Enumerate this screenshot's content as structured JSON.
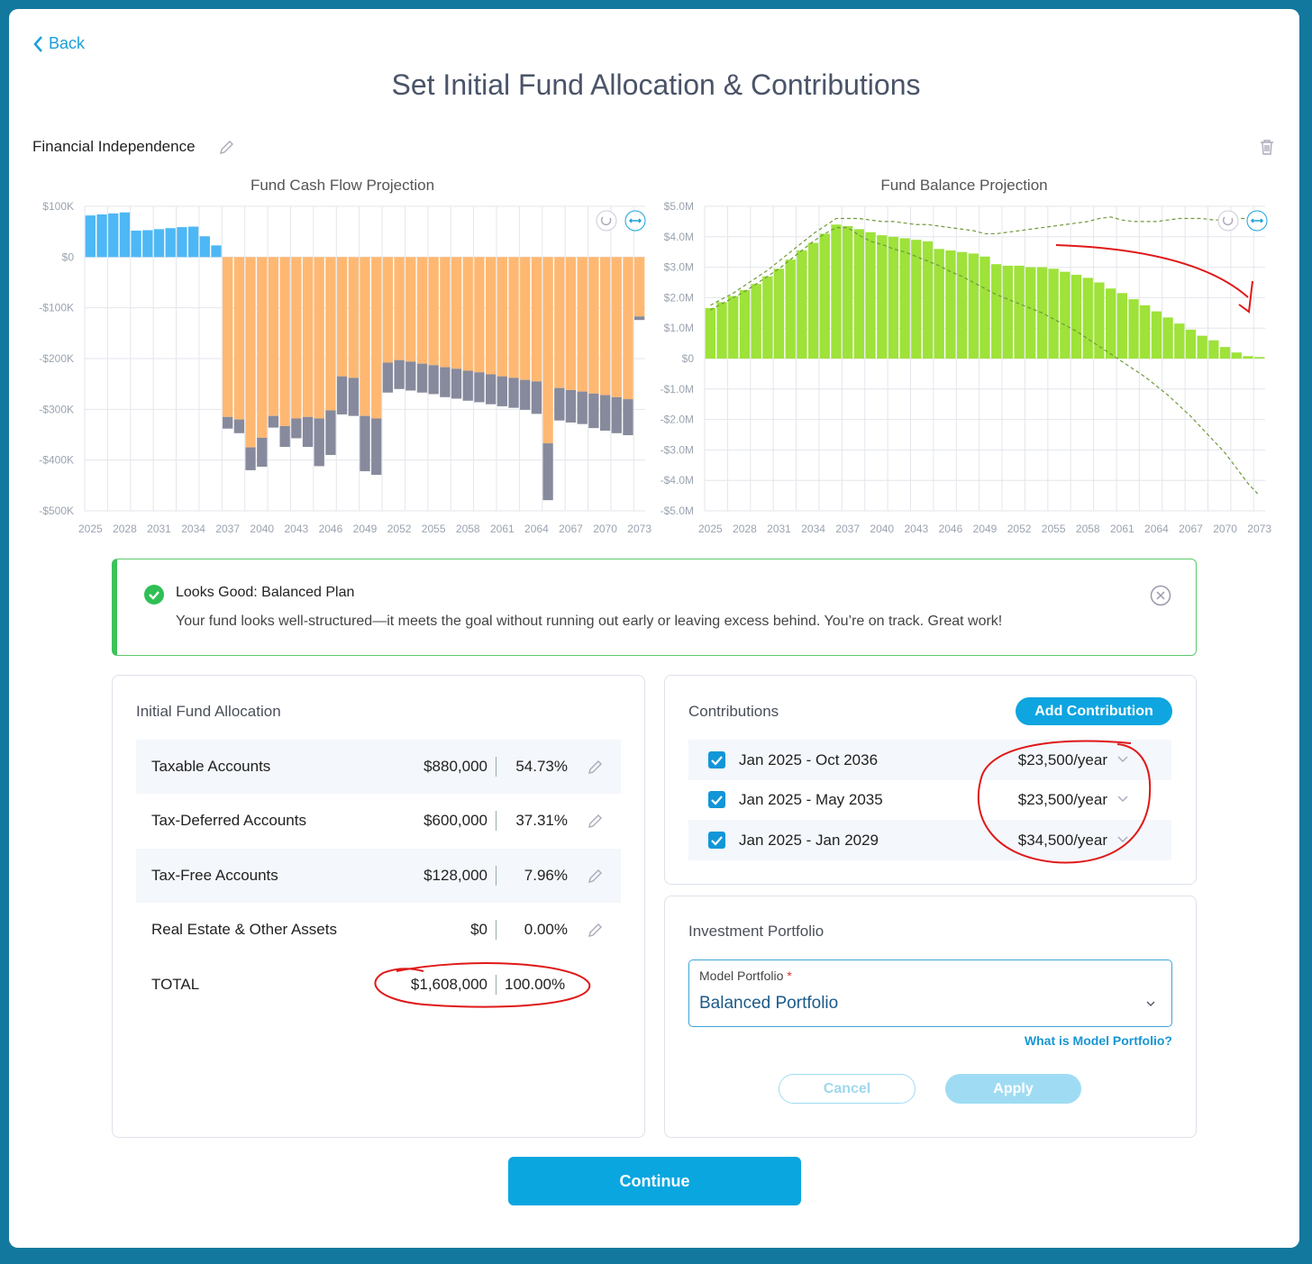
{
  "back": "Back",
  "title": "Set Initial Fund Allocation & Contributions",
  "goal": "Financial Independence",
  "chart_data": [
    {
      "type": "bar",
      "title": "Fund Cash Flow Projection",
      "categories": [
        "2025",
        null,
        null,
        "2028",
        null,
        null,
        "2031",
        null,
        null,
        "2034",
        null,
        null,
        "2037",
        null,
        null,
        "2040",
        null,
        null,
        "2043",
        null,
        null,
        "2046",
        null,
        null,
        "2049",
        null,
        null,
        "2052",
        null,
        null,
        "2055",
        null,
        null,
        "2058",
        null,
        null,
        "2061",
        null,
        null,
        "2064",
        null,
        null,
        "2067",
        null,
        null,
        "2070",
        null,
        null,
        "2073"
      ],
      "series": [
        {
          "color": "#4db8f5",
          "values": [
            82,
            84,
            86,
            88,
            52,
            53,
            55,
            57,
            59,
            60,
            41,
            23,
            0,
            0,
            0,
            0,
            0,
            0,
            0,
            0,
            0,
            0,
            0,
            0,
            0,
            0,
            0,
            0,
            0,
            0,
            0,
            0,
            0,
            0,
            0,
            0,
            0,
            0,
            0,
            0,
            0,
            0,
            0,
            0,
            0,
            0,
            0,
            0,
            0
          ]
        },
        {
          "color": "#ffb872",
          "values": [
            0,
            0,
            0,
            0,
            0,
            0,
            0,
            0,
            0,
            0,
            0,
            0,
            -315,
            -320,
            -375,
            -356,
            -313,
            -333,
            -318,
            -315,
            -318,
            -302,
            -235,
            -238,
            -313,
            -318,
            -208,
            -203,
            -206,
            -210,
            -213,
            -217,
            -220,
            -224,
            -227,
            -231,
            -235,
            -238,
            -242,
            -245,
            -367,
            -258,
            -262,
            -265,
            -269,
            -272,
            -276,
            -280,
            -117
          ]
        },
        {
          "color": "#868a9c",
          "values": [
            0,
            0,
            0,
            0,
            0,
            0,
            0,
            0,
            0,
            0,
            0,
            0,
            -23,
            -27,
            -45,
            -57,
            -23,
            -41,
            -39,
            -59,
            -94,
            -88,
            -75,
            -75,
            -109,
            -111,
            -59,
            -57,
            -57,
            -57,
            -57,
            -59,
            -59,
            -59,
            -59,
            -59,
            -59,
            -59,
            -59,
            -64,
            -112,
            -64,
            -64,
            -64,
            -68,
            -70,
            -71,
            -71,
            -7
          ]
        }
      ],
      "ylim": [
        -500,
        100
      ],
      "yticks": [
        {
          "value": 100,
          "label": "$100K"
        },
        {
          "value": 0,
          "label": "$0"
        },
        {
          "value": -100,
          "label": "-$100K"
        },
        {
          "value": -200,
          "label": "-$200K"
        },
        {
          "value": -300,
          "label": "-$300K"
        },
        {
          "value": -400,
          "label": "-$400K"
        },
        {
          "value": -500,
          "label": "-$500K"
        }
      ],
      "grid": true
    },
    {
      "type": "bar",
      "title": "Fund Balance Projection",
      "categories": [
        "2025",
        null,
        null,
        "2028",
        null,
        null,
        "2031",
        null,
        null,
        "2034",
        null,
        null,
        "2037",
        null,
        null,
        "2040",
        null,
        null,
        "2043",
        null,
        null,
        "2046",
        null,
        null,
        "2049",
        null,
        null,
        "2052",
        null,
        null,
        "2055",
        null,
        null,
        "2058",
        null,
        null,
        "2061",
        null,
        null,
        "2064",
        null,
        null,
        "2067",
        null,
        null,
        "2070",
        null,
        null,
        "2073"
      ],
      "series": [
        {
          "color": "#9ee23a",
          "values": [
            1.66,
            1.85,
            2.05,
            2.25,
            2.45,
            2.7,
            2.95,
            3.25,
            3.55,
            3.8,
            4.1,
            4.4,
            4.35,
            4.25,
            4.15,
            4.05,
            4.0,
            3.95,
            3.9,
            3.85,
            3.6,
            3.55,
            3.5,
            3.45,
            3.35,
            3.1,
            3.05,
            3.05,
            3.0,
            3.0,
            2.95,
            2.85,
            2.75,
            2.65,
            2.5,
            2.3,
            2.15,
            1.95,
            1.75,
            1.55,
            1.35,
            1.15,
            0.95,
            0.75,
            0.6,
            0.38,
            0.2,
            0.08,
            0.05
          ]
        },
        {
          "type": "line",
          "dashed": true,
          "color": "#6f9a3c",
          "values": [
            1.75,
            1.95,
            2.15,
            2.4,
            2.65,
            2.9,
            3.2,
            3.5,
            3.8,
            4.1,
            4.35,
            4.6,
            4.6,
            4.6,
            4.55,
            4.5,
            4.5,
            4.45,
            4.4,
            4.4,
            4.35,
            4.3,
            4.25,
            4.2,
            4.1,
            4.1,
            4.15,
            4.2,
            4.25,
            4.3,
            4.35,
            4.4,
            4.45,
            4.5,
            4.6,
            4.65,
            4.55,
            4.5,
            4.5,
            4.5,
            4.55,
            4.6,
            4.6,
            4.6,
            4.55,
            4.55,
            4.6,
            4.6,
            4.65
          ]
        },
        {
          "type": "line",
          "dashed": true,
          "color": "#6f9a3c",
          "values": [
            1.6,
            1.8,
            2.0,
            2.2,
            2.45,
            2.7,
            2.95,
            3.25,
            3.55,
            3.85,
            4.1,
            4.3,
            4.3,
            4.05,
            3.85,
            3.75,
            3.6,
            3.5,
            3.35,
            3.2,
            3.05,
            2.85,
            2.7,
            2.5,
            2.3,
            2.1,
            1.95,
            1.8,
            1.65,
            1.5,
            1.3,
            1.1,
            0.9,
            0.65,
            0.4,
            0.15,
            -0.1,
            -0.35,
            -0.6,
            -0.9,
            -1.2,
            -1.55,
            -1.9,
            -2.3,
            -2.7,
            -3.1,
            -3.6,
            -4.1,
            -4.5
          ]
        }
      ],
      "ylim": [
        -5,
        5
      ],
      "yticks": [
        {
          "value": 5,
          "label": "$5.0M"
        },
        {
          "value": 4,
          "label": "$4.0M"
        },
        {
          "value": 3,
          "label": "$3.0M"
        },
        {
          "value": 2,
          "label": "$2.0M"
        },
        {
          "value": 1,
          "label": "$1.0M"
        },
        {
          "value": 0,
          "label": "$0"
        },
        {
          "value": -1,
          "label": "-$1.0M"
        },
        {
          "value": -2,
          "label": "-$2.0M"
        },
        {
          "value": -3,
          "label": "-$3.0M"
        },
        {
          "value": -4,
          "label": "-$4.0M"
        },
        {
          "value": -5,
          "label": "-$5.0M"
        }
      ],
      "grid": true
    }
  ],
  "alert": {
    "title": "Looks Good: Balanced Plan",
    "text": "Your fund looks well-structured—it meets the goal without running out early or leaving excess behind. You’re on track. Great work!"
  },
  "allocation": {
    "title": "Initial Fund Allocation",
    "rows": [
      {
        "label": "Taxable Accounts",
        "amount": "$880,000",
        "percent": "54.73%"
      },
      {
        "label": "Tax-Deferred Accounts",
        "amount": "$600,000",
        "percent": "37.31%"
      },
      {
        "label": "Tax-Free Accounts",
        "amount": "$128,000",
        "percent": "7.96%"
      },
      {
        "label": "Real Estate & Other Assets",
        "amount": "$0",
        "percent": "0.00%"
      }
    ],
    "total": {
      "label": "TOTAL",
      "amount": "$1,608,000",
      "percent": "100.00%"
    }
  },
  "contributions": {
    "title": "Contributions",
    "button": "Add Contribution",
    "items": [
      {
        "period": "Jan 2025 - Oct 2036",
        "amount": "$23,500/year"
      },
      {
        "period": "Jan 2025 - May 2035",
        "amount": "$23,500/year"
      },
      {
        "period": "Jan 2025 - Jan 2029",
        "amount": "$34,500/year"
      }
    ]
  },
  "portfolio": {
    "title": "Investment Portfolio",
    "field_label": "Model Portfolio",
    "required": "*",
    "value": "Balanced Portfolio",
    "help": "What is Model Portfolio?",
    "cancel": "Cancel",
    "apply": "Apply"
  },
  "continue": "Continue"
}
